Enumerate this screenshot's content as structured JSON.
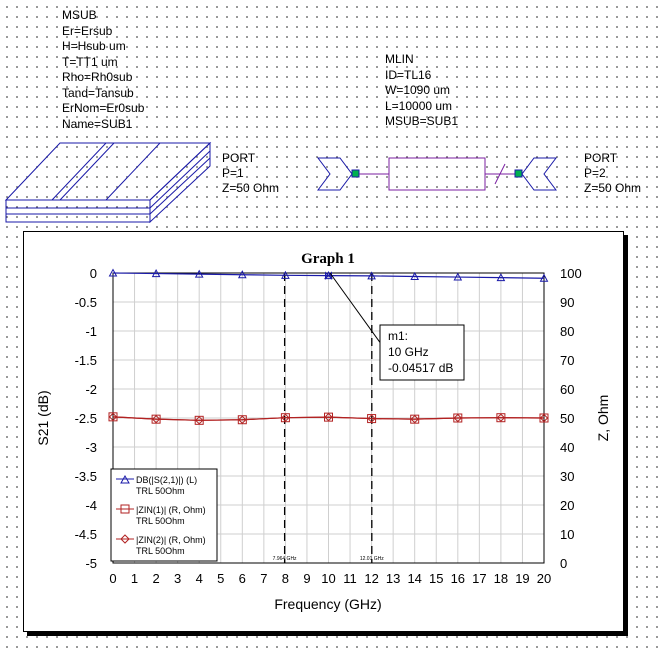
{
  "msub": {
    "title": "MSUB",
    "lines": [
      "Er=Ersub",
      "H=Hsub um",
      "T=TT1 um",
      "Rho=Rh0sub",
      "Tand=Tansub",
      "ErNom=Er0sub",
      "Name=SUB1"
    ]
  },
  "mlin": {
    "title": "MLIN",
    "lines": [
      "ID=TL16",
      "W=1090 um",
      "L=10000 um",
      "MSUB=SUB1"
    ]
  },
  "port1": {
    "lines": [
      "PORT",
      "P=1",
      "Z=50 Ohm"
    ]
  },
  "port2": {
    "lines": [
      "PORT",
      "P=2",
      "Z=50 Ohm"
    ]
  },
  "graph": {
    "title": "Graph 1",
    "marker": {
      "name": "m1:",
      "x_text": "10 GHz",
      "y_text": "-0.04517 dB"
    },
    "vline_labels": [
      "7.964 GHz",
      "12.01 GHz"
    ],
    "legend": [
      {
        "line1": "DB(|S(2,1)|) (L)",
        "line2": "TRL 50Ohm",
        "color": "#1a1aa8",
        "symbol": "triangle"
      },
      {
        "line1": "|ZIN(1)| (R, Ohm)",
        "line2": "TRL 50Ohm",
        "color": "#b22222",
        "symbol": "square"
      },
      {
        "line1": "|ZIN(2)| (R, Ohm)",
        "line2": "TRL 50Ohm",
        "color": "#b22222",
        "symbol": "diamond"
      }
    ]
  },
  "chart_data": {
    "type": "line",
    "title": "Graph 1",
    "xlabel": "Frequency (GHz)",
    "ylabel": "S21 (dB)",
    "y2label": "Z, Ohm",
    "xlim": [
      0,
      20
    ],
    "ylim": [
      -5,
      0
    ],
    "y2lim": [
      0,
      100
    ],
    "x_ticks": [
      0,
      1,
      2,
      3,
      4,
      5,
      6,
      7,
      8,
      9,
      10,
      11,
      12,
      13,
      14,
      15,
      16,
      17,
      18,
      19,
      20
    ],
    "y_ticks": [
      0,
      -0.5,
      -1,
      -1.5,
      -2,
      -2.5,
      -3,
      -3.5,
      -4,
      -4.5,
      -5
    ],
    "y_tick_labels": [
      "0",
      "-0.5",
      "-1",
      "-1.5",
      "-2",
      "-2.5",
      "-3",
      "-3.5",
      "-4",
      "-4.5",
      "-5"
    ],
    "y2_ticks": [
      100,
      90,
      80,
      70,
      60,
      50,
      40,
      30,
      20,
      10,
      0
    ],
    "grid": true,
    "legend_position": "bottom-left",
    "vlines": [
      7.964,
      12.01
    ],
    "marker": {
      "x": 10,
      "y": -0.04517
    },
    "series": [
      {
        "name": "DB(|S(2,1)|) (L)",
        "axis": "left",
        "color": "#1a1aa8",
        "x": [
          0,
          2,
          4,
          6,
          8,
          10,
          12,
          14,
          16,
          18,
          20
        ],
        "values": [
          0,
          -0.01,
          -0.02,
          -0.03,
          -0.04,
          -0.045,
          -0.05,
          -0.06,
          -0.07,
          -0.08,
          -0.09
        ]
      },
      {
        "name": "|ZIN(1)| (R, Ohm)",
        "axis": "right",
        "color": "#b22222",
        "x": [
          0,
          2,
          4,
          6,
          8,
          10,
          12,
          14,
          16,
          18,
          20
        ],
        "values": [
          50.4,
          49.6,
          49.2,
          49.4,
          50.1,
          50.3,
          49.8,
          49.6,
          50.0,
          50.1,
          50.0
        ]
      },
      {
        "name": "|ZIN(2)| (R, Ohm)",
        "axis": "right",
        "color": "#b22222",
        "x": [
          0,
          2,
          4,
          6,
          8,
          10,
          12,
          14,
          16,
          18,
          20
        ],
        "values": [
          50.4,
          49.6,
          49.2,
          49.4,
          50.1,
          50.3,
          49.8,
          49.6,
          50.0,
          50.1,
          50.0
        ]
      }
    ]
  }
}
